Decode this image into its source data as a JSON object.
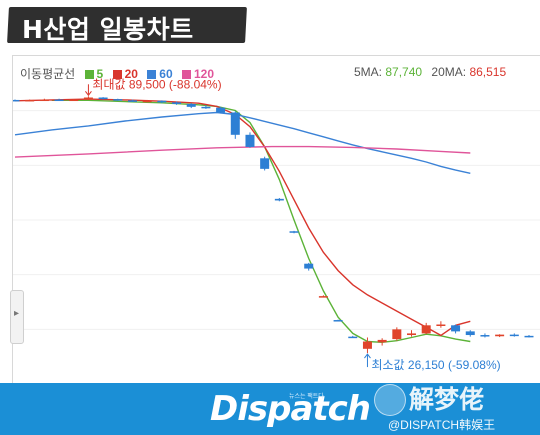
{
  "title": "H산업 일봉차트",
  "legend": {
    "label": "이동평균선",
    "items": [
      {
        "name": "5",
        "color": "#5cb338"
      },
      {
        "name": "20",
        "color": "#d9352c"
      },
      {
        "name": "60",
        "color": "#3b82d6"
      },
      {
        "name": "120",
        "color": "#e0559a"
      }
    ],
    "ma5": "5MA:",
    "ma5_value": "87,740",
    "ma20": "20MA:",
    "ma20_value": "86,515"
  },
  "annotations": {
    "max": "최대값 89,500 (-88.04%)",
    "min": "최소값 26,150 (-59.08%)"
  },
  "footer": {
    "brand": "Dispatch",
    "brand_sub": "뉴스는 팩트다",
    "watermark_big": "解梦佬",
    "watermark_small": "@DISPATCH韩娱王"
  },
  "chart_data": {
    "type": "line",
    "series": [
      {
        "name": "5",
        "color": "#5cb338",
        "points": [
          [
            10,
            88500
          ],
          [
            20,
            88500
          ],
          [
            30,
            88200
          ],
          [
            40,
            87900
          ],
          [
            50,
            87400
          ],
          [
            55,
            87000
          ],
          [
            60,
            86000
          ],
          [
            64,
            83000
          ],
          [
            68,
            77000
          ],
          [
            72,
            69000
          ],
          [
            76,
            59000
          ],
          [
            80,
            49500
          ],
          [
            84,
            41500
          ],
          [
            88,
            35000
          ],
          [
            92,
            31000
          ],
          [
            96,
            29000
          ],
          [
            100,
            28800
          ],
          [
            104,
            29200
          ],
          [
            108,
            30000
          ],
          [
            112,
            30800
          ],
          [
            116,
            30400
          ],
          [
            120,
            29600
          ],
          [
            124,
            29000
          ]
        ]
      },
      {
        "name": "20",
        "color": "#d9352c",
        "points": [
          [
            0,
            88400
          ],
          [
            10,
            88600
          ],
          [
            20,
            88800
          ],
          [
            30,
            88600
          ],
          [
            40,
            88300
          ],
          [
            50,
            87800
          ],
          [
            55,
            87000
          ],
          [
            60,
            85000
          ],
          [
            64,
            82000
          ],
          [
            68,
            77000
          ],
          [
            72,
            71000
          ],
          [
            76,
            64000
          ],
          [
            80,
            57000
          ],
          [
            84,
            51000
          ],
          [
            88,
            46500
          ],
          [
            92,
            43000
          ],
          [
            96,
            40500
          ],
          [
            100,
            38500
          ],
          [
            104,
            36500
          ],
          [
            108,
            34500
          ],
          [
            112,
            32500
          ],
          [
            116,
            30500
          ],
          [
            120,
            33000
          ],
          [
            124,
            34000
          ]
        ]
      },
      {
        "name": "60",
        "color": "#3b82d6",
        "points": [
          [
            0,
            80000
          ],
          [
            10,
            81200
          ],
          [
            20,
            82200
          ],
          [
            30,
            83400
          ],
          [
            40,
            84400
          ],
          [
            50,
            85200
          ],
          [
            55,
            85500
          ],
          [
            60,
            85000
          ],
          [
            64,
            84200
          ],
          [
            68,
            83300
          ],
          [
            72,
            82400
          ],
          [
            76,
            81500
          ],
          [
            80,
            80500
          ],
          [
            84,
            79500
          ],
          [
            88,
            78500
          ],
          [
            92,
            77500
          ],
          [
            96,
            76600
          ],
          [
            100,
            75800
          ],
          [
            104,
            75000
          ],
          [
            108,
            74200
          ],
          [
            112,
            73300
          ],
          [
            116,
            72200
          ],
          [
            120,
            71300
          ],
          [
            124,
            70500
          ]
        ]
      },
      {
        "name": "120",
        "color": "#e0559a",
        "points": [
          [
            0,
            74500
          ],
          [
            20,
            75300
          ],
          [
            40,
            76200
          ],
          [
            55,
            76800
          ],
          [
            70,
            77100
          ],
          [
            80,
            77100
          ],
          [
            92,
            76900
          ],
          [
            104,
            76500
          ],
          [
            116,
            75900
          ],
          [
            124,
            75500
          ]
        ]
      }
    ],
    "candles": [
      [
        0,
        88600,
        88700,
        88400,
        88500
      ],
      [
        4,
        88500,
        88700,
        88300,
        88600
      ],
      [
        8,
        88600,
        88900,
        88400,
        88700
      ],
      [
        12,
        88700,
        88900,
        88500,
        88600
      ],
      [
        16,
        88600,
        88800,
        88400,
        88700
      ],
      [
        20,
        88700,
        89500,
        88600,
        89200
      ],
      [
        24,
        89200,
        89300,
        88700,
        88800
      ],
      [
        28,
        88800,
        88900,
        88400,
        88500
      ],
      [
        32,
        88500,
        88700,
        88200,
        88300
      ],
      [
        36,
        88300,
        88600,
        88000,
        88400
      ],
      [
        40,
        88400,
        88500,
        87800,
        88000
      ],
      [
        44,
        88000,
        88200,
        87400,
        87600
      ],
      [
        48,
        87600,
        87800,
        86600,
        86900
      ],
      [
        52,
        86900,
        87300,
        86400,
        86700
      ],
      [
        56,
        86700,
        86900,
        85300,
        85500
      ],
      [
        60,
        85500,
        85800,
        79000,
        80000
      ],
      [
        64,
        80000,
        80600,
        76800,
        77000
      ],
      [
        68,
        74200,
        74600,
        71200,
        71600
      ],
      [
        72,
        64200,
        64400,
        63600,
        63800
      ],
      [
        76,
        56200,
        56300,
        55700,
        55900
      ],
      [
        80,
        48200,
        48400,
        46500,
        47000
      ],
      [
        84,
        40200,
        40400,
        40000,
        40200
      ],
      [
        88,
        34300,
        34400,
        34100,
        34200
      ],
      [
        92,
        30200,
        30400,
        30000,
        30100
      ],
      [
        96,
        27200,
        30000,
        26150,
        29000
      ],
      [
        100,
        28800,
        29800,
        28000,
        29400
      ],
      [
        104,
        29600,
        32500,
        29200,
        32000
      ],
      [
        108,
        30600,
        31800,
        30200,
        31000
      ],
      [
        112,
        31000,
        33600,
        30800,
        33000
      ],
      [
        116,
        33000,
        34000,
        32400,
        33200
      ],
      [
        120,
        33000,
        33200,
        31000,
        31500
      ],
      [
        124,
        31500,
        31800,
        30200,
        30600
      ],
      [
        128,
        30600,
        31000,
        30000,
        30300
      ],
      [
        132,
        30300,
        30800,
        30100,
        30700
      ],
      [
        136,
        30700,
        31000,
        30200,
        30400
      ],
      [
        140,
        30400,
        30600,
        30000,
        30100
      ]
    ],
    "ylim": [
      20000,
      95000
    ]
  }
}
